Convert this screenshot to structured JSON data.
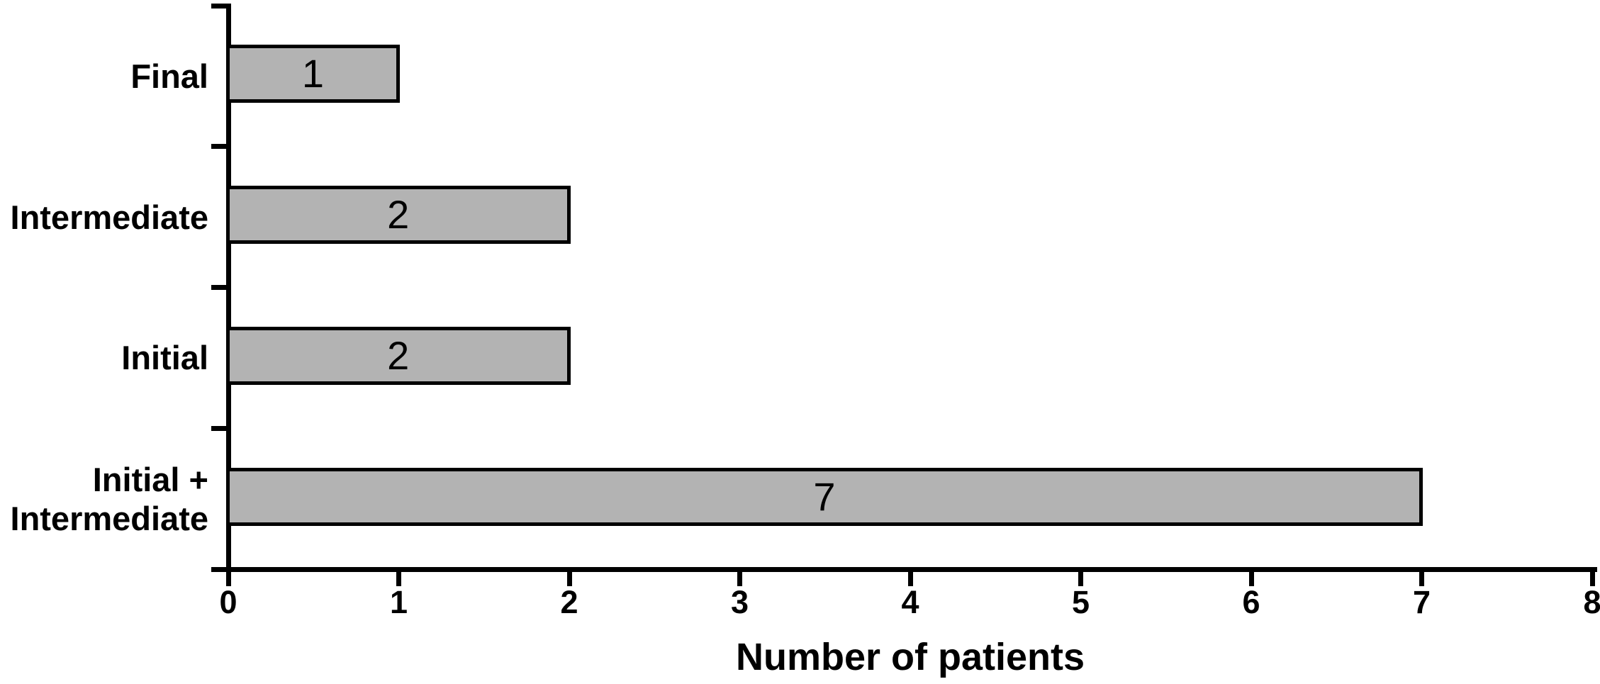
{
  "figure": {
    "background": "#ffffff"
  },
  "chart_data": {
    "type": "bar",
    "orientation": "horizontal",
    "title": "",
    "xlabel": "Number of patients",
    "ylabel": "",
    "categories": [
      "Final",
      "Intermediate",
      "Initial",
      "Initial +\nIntermediate"
    ],
    "values": [
      1,
      2,
      2,
      7
    ],
    "bar_value_labels": [
      "1",
      "2",
      "2",
      "7"
    ],
    "xlim": [
      0,
      8
    ],
    "xtick_labels": [
      "0",
      "1",
      "2",
      "3",
      "4",
      "5",
      "6",
      "7",
      "8"
    ],
    "grid": false,
    "legend_position": "none",
    "bar_fill_color": "#b3b3b3",
    "bar_border_color": "#000000",
    "axis_color": "#000000",
    "text_color": "#000000"
  }
}
